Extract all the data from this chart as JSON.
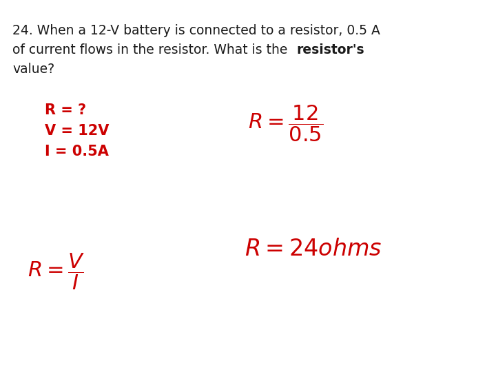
{
  "background_color": "#ffffff",
  "black_color": "#1a1a1a",
  "red_color": "#cc0000",
  "line1": "24. When a 12-V battery is connected to a resistor, 0.5 A",
  "line2_normal": "of current flows in the resistor. What is the ",
  "line2_bold": "resistor's",
  "line3": "value?",
  "given1": "R = ?",
  "given2": "V = 12V",
  "given3": "I = 0.5A",
  "fig_width": 7.2,
  "fig_height": 5.4,
  "dpi": 100
}
